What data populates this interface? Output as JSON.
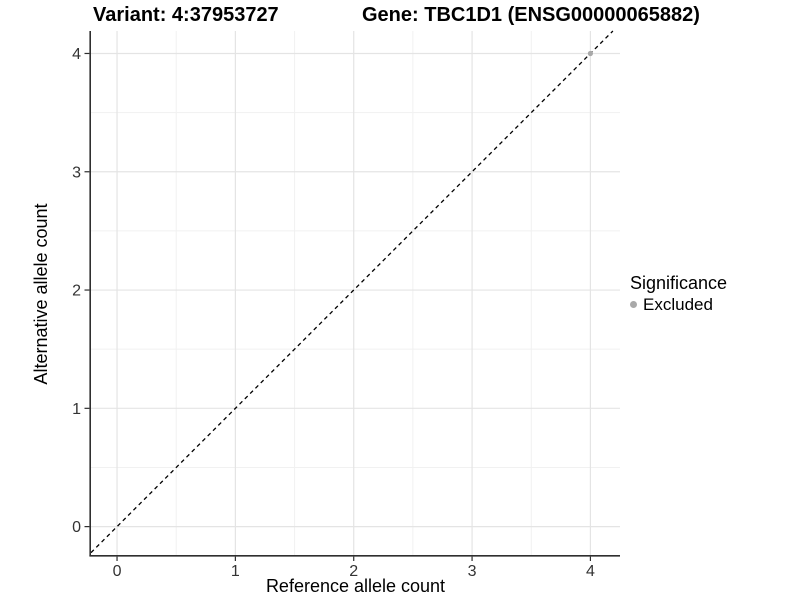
{
  "titles": {
    "left": "Variant: 4:37953727",
    "right": "Gene: TBC1D1 (ENSG00000065882)"
  },
  "chart_data": {
    "type": "scatter",
    "title": "Variant: 4:37953727        Gene: TBC1D1 (ENSG00000065882)",
    "xlabel": "Reference allele count",
    "ylabel": "Alternative allele count",
    "xlim": [
      -0.22,
      4.25
    ],
    "ylim": [
      -0.24,
      4.19
    ],
    "x_ticks": [
      0,
      1,
      2,
      3,
      4
    ],
    "y_ticks": [
      0,
      1,
      2,
      3,
      4
    ],
    "x_minor_ticks": [
      0.5,
      1.5,
      2.5,
      3.5
    ],
    "y_minor_ticks": [
      0.5,
      1.5,
      2.5,
      3.5
    ],
    "grid": "major+minor",
    "identity_line": {
      "type": "abline",
      "slope": 1,
      "intercept": 0,
      "style": "dashed",
      "color": "#000000"
    },
    "points": [
      {
        "x": 4,
        "y": 4,
        "significance": "Excluded"
      }
    ],
    "legend": {
      "title": "Significance",
      "position": "right",
      "items": [
        {
          "label": "Excluded",
          "color": "#A9A9A9"
        }
      ]
    },
    "colors": {
      "background": "#FFFFFF",
      "grid_major": "#E4E4E4",
      "grid_minor": "#F1F1F1",
      "axis_line": "#2F2F2F",
      "tick_mark": "#2F2F2F",
      "tick_label": "#333333",
      "point": "#A9A9A9"
    }
  }
}
